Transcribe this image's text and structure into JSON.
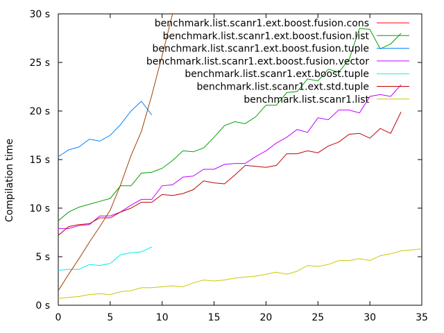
{
  "chart_data": {
    "type": "line",
    "ylabel": "Compilation time",
    "xlim": [
      0,
      35
    ],
    "ylim": [
      0,
      30
    ],
    "x_ticks": [
      0,
      5,
      10,
      15,
      20,
      25,
      30,
      35
    ],
    "y_ticks": [
      0,
      5,
      10,
      15,
      20,
      25,
      30
    ],
    "y_tick_labels": [
      "0 s",
      "5 s",
      "10 s",
      "15 s",
      "20 s",
      "25 s",
      "30 s"
    ],
    "grid": false,
    "legend_position": "top-right",
    "series": [
      {
        "name": "benchmark.list.scanr1.ext.boost.fusion.cons",
        "color": "#ff0000",
        "x": [],
        "y": []
      },
      {
        "name": "benchmark.list.scanr1.ext.boost.fusion.list",
        "color": "#00a000",
        "x": [
          0,
          1,
          2,
          3,
          4,
          5,
          6,
          7,
          8,
          9,
          10,
          11,
          12,
          13,
          14,
          15,
          16,
          17,
          18,
          19,
          20,
          21,
          22,
          23,
          24,
          25,
          26,
          27,
          28,
          29,
          30,
          31,
          32,
          33
        ],
        "y": [
          8.7,
          9.6,
          10.1,
          10.4,
          10.7,
          11.0,
          12.3,
          12.3,
          13.6,
          13.7,
          14.1,
          14.9,
          15.9,
          15.8,
          16.2,
          17.3,
          18.5,
          18.9,
          18.7,
          19.4,
          20.6,
          20.6,
          21.9,
          22.0,
          23.3,
          23.1,
          24.3,
          24.0,
          25.3,
          28.5,
          28.4,
          26.4,
          26.9,
          28.0
        ]
      },
      {
        "name": "benchmark.list.scanr1.ext.boost.fusion.tuple",
        "color": "#0080ff",
        "x": [
          0,
          1,
          2,
          3,
          4,
          5,
          6,
          7,
          8,
          9
        ],
        "y": [
          15.3,
          16.0,
          16.3,
          17.1,
          16.9,
          17.5,
          18.6,
          20.0,
          21.0,
          19.6
        ]
      },
      {
        "name": "benchmark.list.scanr1.ext.boost.fusion.vector",
        "color": "#c000ff",
        "x": [
          0,
          1,
          2,
          3,
          4,
          5,
          6,
          7,
          8,
          9,
          10,
          11,
          12,
          13,
          14,
          15,
          16,
          17,
          18,
          19,
          20,
          21,
          22,
          23,
          24,
          25,
          26,
          27,
          28,
          29,
          30,
          31,
          32,
          33
        ],
        "y": [
          7.9,
          7.9,
          8.2,
          8.3,
          9.2,
          9.2,
          9.6,
          10.3,
          10.9,
          10.9,
          12.3,
          12.4,
          13.2,
          13.3,
          14.0,
          14.0,
          14.5,
          14.6,
          14.6,
          15.3,
          15.9,
          16.7,
          17.3,
          18.1,
          17.8,
          19.3,
          19.1,
          20.1,
          20.1,
          19.8,
          21.5,
          21.7,
          21.5,
          22.7
        ]
      },
      {
        "name": "benchmark.list.scanr1.ext.boost.tuple",
        "color": "#00eeee",
        "x": [
          0,
          1,
          2,
          3,
          4,
          5,
          6,
          7,
          8,
          9
        ],
        "y": [
          3.6,
          3.7,
          3.7,
          4.2,
          4.1,
          4.3,
          5.2,
          5.4,
          5.5,
          6.0
        ]
      },
      {
        "name": "benchmark.list.scanr1.ext.std.tuple",
        "color": "#c00000",
        "x": [
          0,
          1,
          2,
          3,
          4,
          5,
          6,
          7,
          8,
          9,
          10,
          11,
          12,
          13,
          14,
          15,
          16,
          17,
          18,
          19,
          20,
          21,
          22,
          23,
          24,
          25,
          26,
          27,
          28,
          29,
          30,
          31,
          32,
          33
        ],
        "y": [
          7.2,
          8.1,
          8.3,
          8.4,
          9.0,
          9.0,
          9.6,
          10.0,
          10.6,
          10.6,
          11.4,
          11.3,
          11.5,
          11.9,
          12.8,
          12.6,
          12.5,
          13.4,
          14.4,
          14.3,
          14.2,
          14.4,
          15.6,
          15.6,
          15.9,
          15.7,
          16.4,
          16.8,
          17.6,
          17.7,
          17.2,
          18.2,
          17.7,
          19.9
        ]
      },
      {
        "name": "benchmark.list.scanr1.list",
        "color": "#c8c800",
        "x": [
          0,
          1,
          2,
          3,
          4,
          5,
          6,
          7,
          8,
          9,
          10,
          11,
          12,
          13,
          14,
          15,
          16,
          17,
          18,
          19,
          20,
          21,
          22,
          23,
          24,
          25,
          26,
          27,
          28,
          29,
          30,
          31,
          32,
          33,
          34,
          35
        ],
        "y": [
          0.7,
          0.8,
          0.9,
          1.1,
          1.2,
          1.1,
          1.4,
          1.5,
          1.8,
          1.8,
          1.9,
          2.0,
          1.9,
          2.3,
          2.6,
          2.5,
          2.6,
          2.8,
          2.9,
          3.0,
          3.2,
          3.4,
          3.2,
          3.5,
          4.1,
          4.0,
          4.2,
          4.6,
          4.6,
          4.8,
          4.6,
          5.1,
          5.3,
          5.6,
          5.7,
          5.8
        ]
      },
      {
        "name": "",
        "color": "#a04000",
        "x": [
          0,
          1,
          2,
          3,
          4,
          5,
          6,
          7,
          8,
          9,
          10,
          11
        ],
        "y": [
          1.5,
          3.2,
          4.8,
          6.5,
          8.1,
          9.8,
          12.4,
          15.4,
          17.9,
          21.6,
          25.7,
          30.0
        ]
      }
    ]
  }
}
